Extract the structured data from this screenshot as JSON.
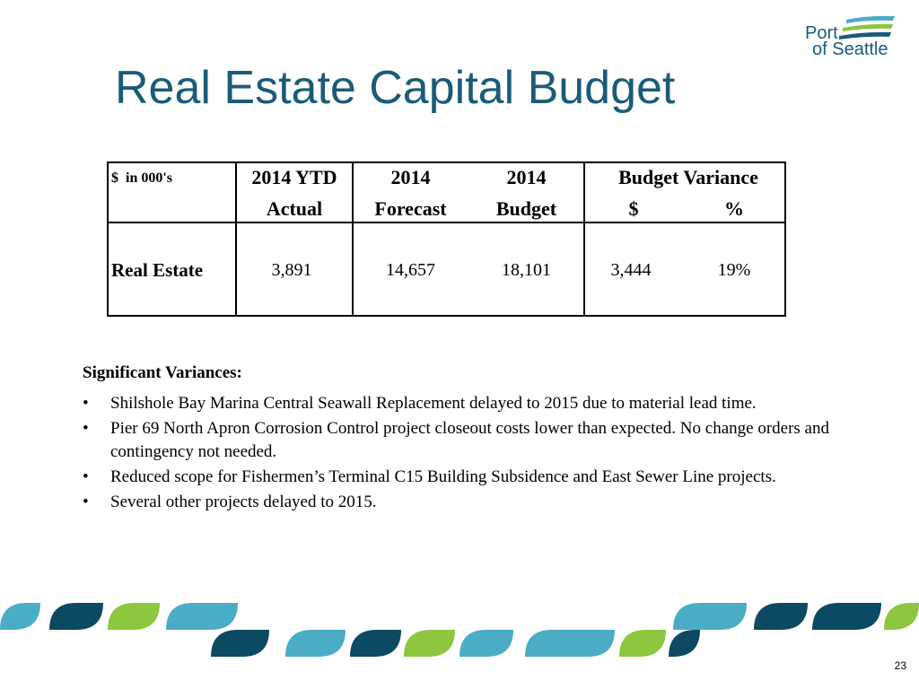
{
  "header": {
    "title": "Real Estate Capital Budget",
    "logo_line1": "Port",
    "logo_line2": "of Seattle"
  },
  "table": {
    "unit_label": "$  in 000's",
    "columns": [
      {
        "line1": "2014 YTD",
        "line2": "Actual"
      },
      {
        "line1": "2014",
        "line2": "Forecast"
      },
      {
        "line1": "2014",
        "line2": "Budget"
      }
    ],
    "variance": {
      "title": "Budget Variance",
      "columns": [
        "$",
        "%"
      ]
    },
    "rows": [
      [
        "Real Estate",
        "3,891",
        "14,657",
        "18,101",
        "3,444",
        "19%"
      ]
    ]
  },
  "notes": {
    "heading": "Significant Variances:",
    "bullets": [
      "Shilshole Bay Marina Central Seawall Replacement delayed to 2015 due to material lead time.",
      "Pier 69 North Apron Corrosion Control project closeout costs lower than expected.  No change orders and contingency not needed.",
      "Reduced scope for Fishermen’s Terminal C15 Building Subsidence and East Sewer Line projects.",
      "Several other projects delayed to 2015."
    ]
  },
  "footer": {
    "page_number": "23"
  }
}
